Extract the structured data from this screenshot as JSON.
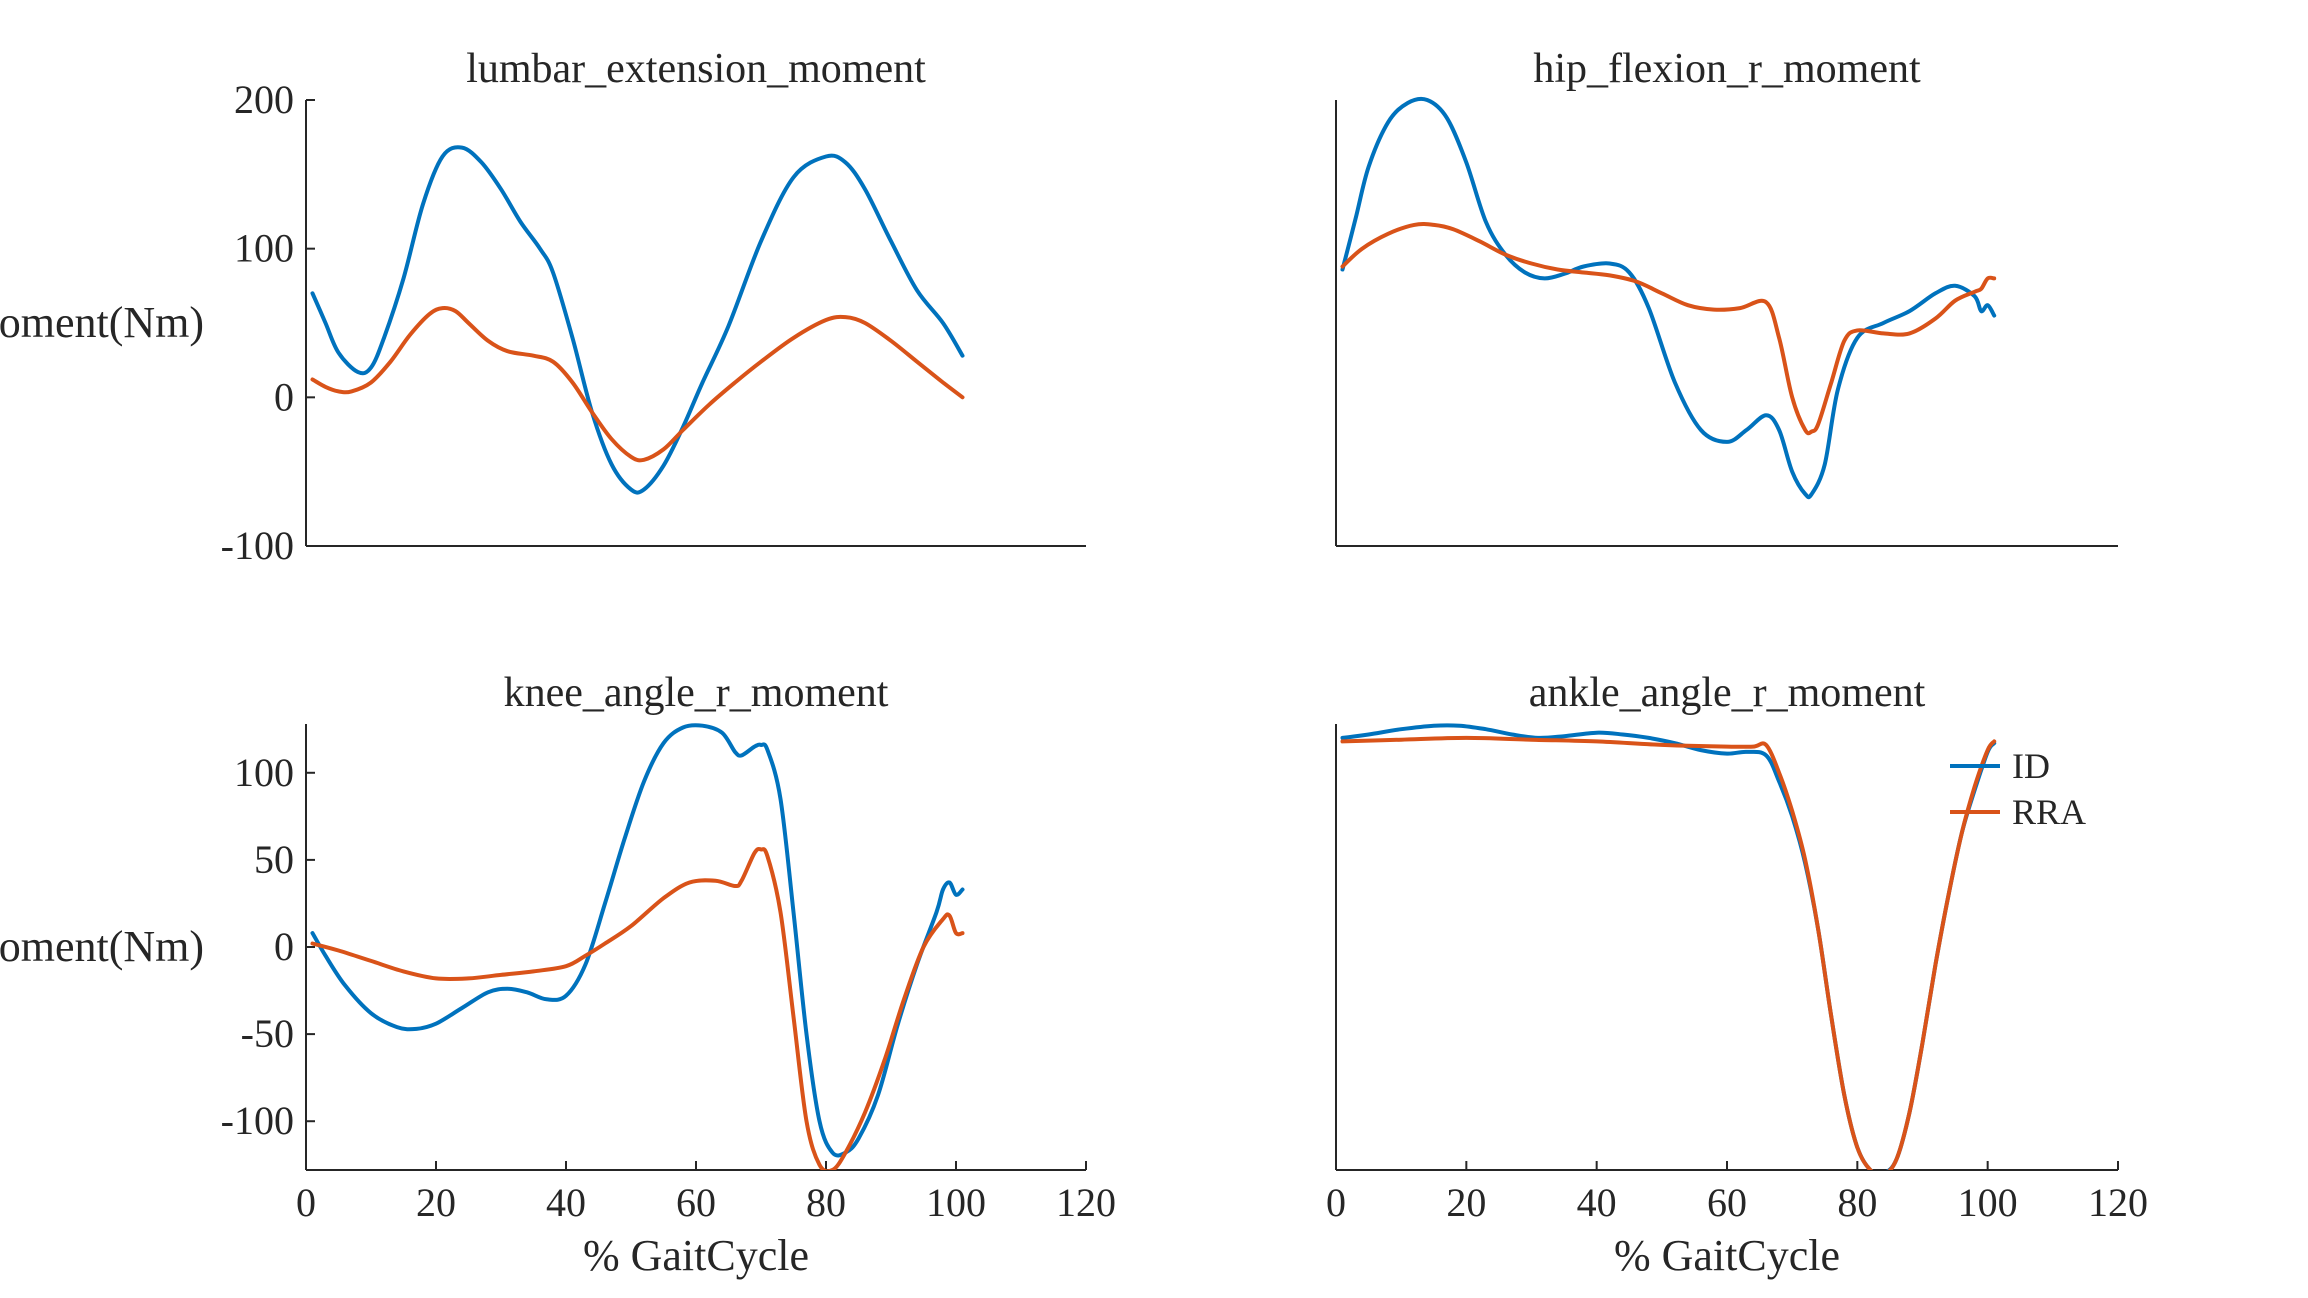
{
  "colors": {
    "ID": "#0072BD",
    "RRA": "#D95319",
    "axis": "#262626"
  },
  "legend": {
    "entries": [
      "ID",
      "RRA"
    ],
    "placement": "top-right",
    "panel": 3
  },
  "chart_data": [
    {
      "type": "line",
      "title": "lumbar_extension_moment",
      "ylabel": "Moment(Nm)",
      "xlabel": "",
      "xlim": [
        0,
        120
      ],
      "ylim": [
        -100,
        200
      ],
      "yticks": [
        -100,
        0,
        100,
        200
      ],
      "xticks": [],
      "show_x_axis": false,
      "grid": false,
      "series": [
        {
          "name": "ID",
          "x": [
            1,
            3,
            5,
            8,
            10,
            12,
            15,
            18,
            21,
            24,
            27,
            30,
            33,
            36,
            38,
            41,
            44,
            47,
            50,
            52,
            55,
            58,
            61,
            65,
            70,
            75,
            80,
            83,
            86,
            90,
            94,
            98,
            101
          ],
          "y": [
            70,
            50,
            30,
            17,
            20,
            40,
            80,
            130,
            162,
            168,
            158,
            140,
            118,
            100,
            84,
            40,
            -10,
            -45,
            -62,
            -62,
            -46,
            -20,
            10,
            48,
            105,
            148,
            162,
            158,
            140,
            105,
            72,
            50,
            28
          ]
        },
        {
          "name": "RRA",
          "x": [
            1,
            3,
            5,
            7,
            10,
            13,
            16,
            19,
            21,
            23,
            25,
            28,
            31,
            35,
            38,
            41,
            44,
            47,
            50,
            52,
            55,
            58,
            62,
            66,
            70,
            75,
            80,
            83,
            86,
            90,
            94,
            98,
            101
          ],
          "y": [
            12,
            7,
            4,
            4,
            10,
            24,
            42,
            56,
            60,
            58,
            50,
            38,
            31,
            28,
            24,
            10,
            -10,
            -28,
            -40,
            -42,
            -35,
            -22,
            -5,
            10,
            24,
            40,
            52,
            54,
            50,
            38,
            24,
            10,
            0
          ]
        }
      ]
    },
    {
      "type": "line",
      "title": "hip_flexion_r_moment",
      "ylabel": "",
      "xlabel": "",
      "xlim": [
        0,
        120
      ],
      "ylim": [
        -100,
        200
      ],
      "yticks": [],
      "xticks": [],
      "show_x_axis": false,
      "grid": false,
      "series": [
        {
          "name": "ID",
          "x": [
            1,
            3,
            5,
            8,
            11,
            14,
            17,
            20,
            23,
            26,
            29,
            32,
            35,
            38,
            42,
            45,
            48,
            52,
            56,
            60,
            63,
            66,
            68,
            70,
            72,
            73,
            75,
            77,
            80,
            84,
            88,
            92,
            95,
            98,
            99,
            100,
            101
          ],
          "y": [
            86,
            120,
            155,
            185,
            198,
            200,
            188,
            158,
            118,
            96,
            84,
            80,
            83,
            88,
            90,
            84,
            60,
            10,
            -22,
            -30,
            -22,
            -12,
            -22,
            -50,
            -65,
            -65,
            -45,
            5,
            40,
            50,
            58,
            70,
            75,
            68,
            58,
            62,
            55
          ]
        },
        {
          "name": "RRA",
          "x": [
            1,
            4,
            8,
            12,
            15,
            18,
            22,
            26,
            30,
            34,
            38,
            42,
            46,
            50,
            54,
            58,
            62,
            66,
            68,
            70,
            72,
            73,
            74,
            76,
            78,
            80,
            84,
            88,
            92,
            95,
            98,
            99,
            100,
            101
          ],
          "y": [
            88,
            100,
            110,
            116,
            116,
            113,
            105,
            96,
            90,
            86,
            84,
            82,
            78,
            70,
            62,
            59,
            60,
            64,
            40,
            0,
            -22,
            -23,
            -18,
            10,
            38,
            45,
            43,
            43,
            53,
            65,
            71,
            73,
            80,
            80
          ]
        }
      ]
    },
    {
      "type": "line",
      "title": "knee_angle_r_moment",
      "ylabel": "Moment(Nm)",
      "xlabel": "% GaitCycle",
      "xlim": [
        0,
        120
      ],
      "ylim": [
        -128,
        128
      ],
      "yticks": [
        -100,
        -50,
        0,
        50,
        100
      ],
      "xticks": [
        0,
        20,
        40,
        60,
        80,
        100,
        120
      ],
      "show_x_axis": true,
      "grid": false,
      "series": [
        {
          "name": "ID",
          "x": [
            1,
            3,
            6,
            10,
            14,
            17,
            20,
            24,
            28,
            31,
            34,
            37,
            40,
            43,
            46,
            49,
            52,
            55,
            58,
            61,
            64,
            66,
            67,
            69,
            70,
            71,
            73,
            75,
            77,
            79,
            81,
            83,
            85,
            88,
            91,
            94,
            97,
            98,
            99,
            100,
            101
          ],
          "y": [
            8,
            -5,
            -22,
            -38,
            -46,
            -47,
            -44,
            -35,
            -26,
            -24,
            -26,
            -30,
            -28,
            -10,
            25,
            62,
            95,
            117,
            126,
            127,
            123,
            112,
            110,
            115,
            116,
            113,
            85,
            20,
            -50,
            -100,
            -118,
            -118,
            -110,
            -85,
            -45,
            -10,
            20,
            33,
            37,
            30,
            33
          ]
        },
        {
          "name": "RRA",
          "x": [
            1,
            5,
            10,
            15,
            20,
            25,
            30,
            35,
            40,
            43,
            46,
            50,
            55,
            59,
            63,
            66,
            67,
            69,
            70,
            71,
            73,
            75,
            77,
            79,
            81,
            83,
            86,
            89,
            92,
            95,
            98,
            99,
            100,
            101
          ],
          "y": [
            2,
            -2,
            -8,
            -14,
            -18,
            -18,
            -16,
            -14,
            -11,
            -5,
            2,
            12,
            28,
            37,
            38,
            35,
            38,
            54,
            56,
            52,
            20,
            -40,
            -100,
            -125,
            -128,
            -118,
            -95,
            -65,
            -30,
            0,
            16,
            18,
            8,
            8
          ]
        }
      ]
    },
    {
      "type": "line",
      "title": "ankle_angle_r_moment",
      "ylabel": "",
      "xlabel": "% GaitCycle",
      "xlim": [
        0,
        120
      ],
      "ylim": [
        -128,
        128
      ],
      "yticks": [],
      "xticks": [
        0,
        20,
        40,
        60,
        80,
        100,
        120
      ],
      "show_x_axis": true,
      "grid": false,
      "series": [
        {
          "name": "ID",
          "x": [
            1,
            5,
            10,
            15,
            19,
            23,
            27,
            31,
            35,
            40,
            44,
            48,
            52,
            56,
            60,
            63,
            66,
            68,
            70,
            72,
            74,
            76,
            78,
            80,
            82,
            84,
            86,
            88,
            90,
            92,
            94,
            96,
            98,
            100,
            101
          ],
          "y": [
            120,
            122,
            125,
            127,
            127,
            125,
            122,
            120,
            121,
            123,
            122,
            120,
            117,
            113,
            111,
            112,
            110,
            95,
            75,
            48,
            10,
            -40,
            -85,
            -115,
            -128,
            -130,
            -122,
            -95,
            -55,
            -10,
            30,
            65,
            90,
            112,
            117
          ]
        },
        {
          "name": "RRA",
          "x": [
            1,
            10,
            20,
            30,
            40,
            50,
            60,
            64,
            66,
            68,
            70,
            72,
            74,
            76,
            78,
            80,
            82,
            84,
            86,
            88,
            90,
            92,
            94,
            96,
            98,
            100,
            101
          ],
          "y": [
            118,
            119,
            120,
            119,
            118,
            116,
            115,
            115,
            116,
            100,
            78,
            50,
            10,
            -40,
            -85,
            -115,
            -128,
            -131,
            -122,
            -95,
            -55,
            -10,
            30,
            65,
            92,
            113,
            118
          ]
        }
      ]
    }
  ]
}
